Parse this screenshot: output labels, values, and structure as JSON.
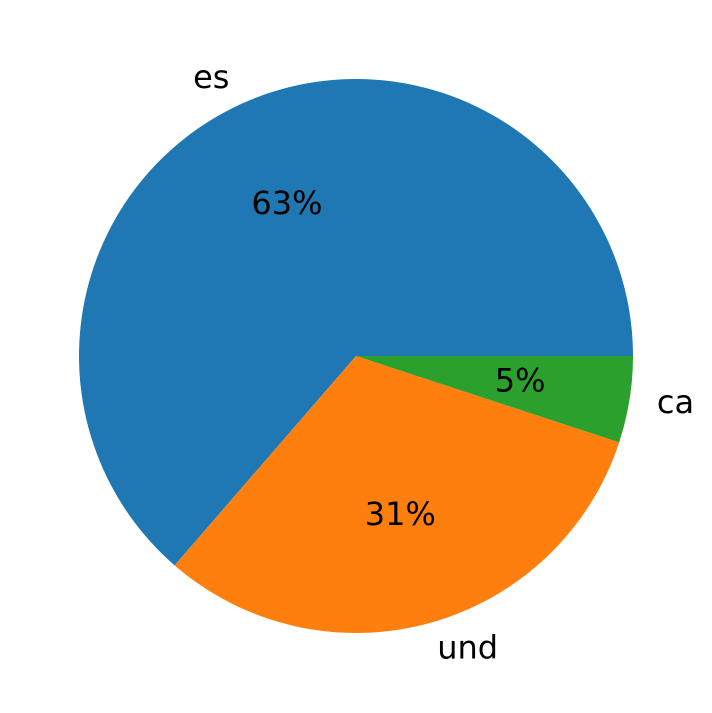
{
  "chart_data": {
    "type": "pie",
    "categories": [
      "es",
      "und",
      "ca"
    ],
    "values": [
      63,
      31,
      5
    ],
    "value_labels": [
      "63%",
      "31%",
      "5%"
    ],
    "colors": [
      "#1f77b4",
      "#ff7f0e",
      "#2ca02c"
    ],
    "start_angle": 0
  }
}
